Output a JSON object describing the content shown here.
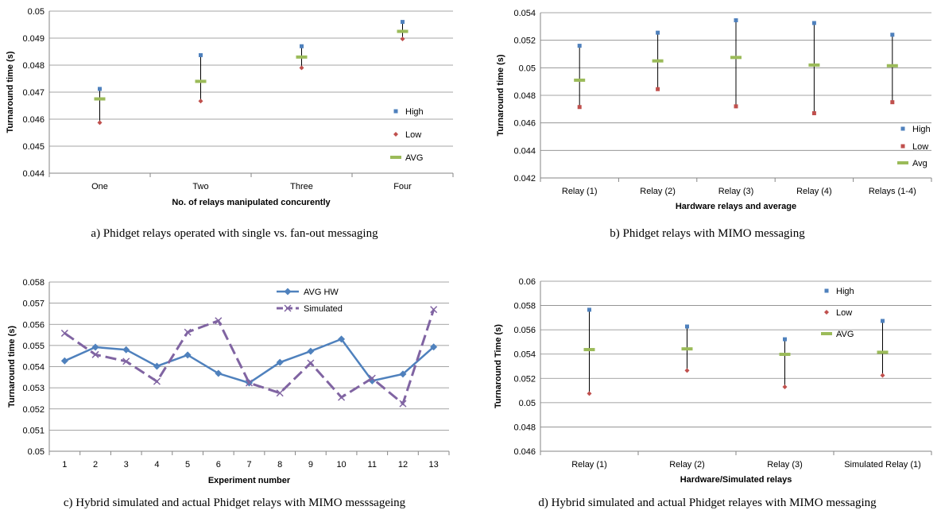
{
  "colors": {
    "high": "#4f81bd",
    "low": "#c0504d",
    "avg": "#9bbb59",
    "hw": "#4f81bd",
    "sim": "#8064a2",
    "grid": "#868686",
    "whisker": "#000000"
  },
  "captions": [
    "a) Phidget relays operated with single vs. fan-out messaging",
    "b) Phidget relays with MIMO messaging",
    "c) Hybrid simulated and actual Phidget relays with MIMO messsageing",
    "d) Hybrid simulated and actual Phidget relayes with MIMO messaging"
  ],
  "chart_data": [
    {
      "type": "scatter",
      "xlabel": "No. of relays manipulated concurently",
      "ylabel": "Turnaround time (s)",
      "categories": [
        "One",
        "Two",
        "Three",
        "Four"
      ],
      "ylim": [
        0.044,
        0.05
      ],
      "yticks": [
        "0.044",
        "0.045",
        "0.046",
        "0.047",
        "0.048",
        "0.049",
        "0.05"
      ],
      "grid": true,
      "legend_position": "right",
      "series": [
        {
          "name": "High",
          "values": [
            0.04712,
            0.04837,
            0.0487,
            0.0496
          ]
        },
        {
          "name": "Low",
          "values": [
            0.04587,
            0.04667,
            0.0479,
            0.04897
          ]
        },
        {
          "name": "AVG",
          "values": [
            0.04675,
            0.0474,
            0.0483,
            0.04925
          ]
        }
      ]
    },
    {
      "type": "scatter",
      "xlabel": "Hardware relays and average",
      "ylabel": "Turnaround time (s)",
      "categories": [
        "Relay (1)",
        "Relay (2)",
        "Relay (3)",
        "Relay (4)",
        "Relays (1-4)"
      ],
      "ylim": [
        0.042,
        0.054
      ],
      "yticks": [
        "0.042",
        "0.044",
        "0.046",
        "0.048",
        "0.05",
        "0.052",
        "0.054"
      ],
      "grid": true,
      "legend_position": "right",
      "series": [
        {
          "name": "High",
          "values": [
            0.0516,
            0.05255,
            0.05345,
            0.05325,
            0.0524
          ]
        },
        {
          "name": "Low",
          "values": [
            0.04715,
            0.04845,
            0.0472,
            0.0467,
            0.0475
          ]
        },
        {
          "name": "Avg",
          "values": [
            0.0491,
            0.0505,
            0.05075,
            0.0502,
            0.05015
          ]
        }
      ]
    },
    {
      "type": "line",
      "xlabel": "Experiment number",
      "ylabel": "Turnaround time (s)",
      "categories": [
        "1",
        "2",
        "3",
        "4",
        "5",
        "6",
        "7",
        "8",
        "9",
        "10",
        "11",
        "12",
        "13"
      ],
      "ylim": [
        0.05,
        0.058
      ],
      "yticks": [
        "0.05",
        "0.051",
        "0.052",
        "0.053",
        "0.054",
        "0.055",
        "0.056",
        "0.057",
        "0.058"
      ],
      "grid": true,
      "legend_position": "top-right",
      "series": [
        {
          "name": "AVG HW",
          "values": [
            0.05427,
            0.05492,
            0.0548,
            0.05402,
            0.05455,
            0.05368,
            0.05323,
            0.0542,
            0.05473,
            0.0553,
            0.05333,
            0.05365,
            0.05493
          ]
        },
        {
          "name": "Simulated",
          "values": [
            0.05558,
            0.05457,
            0.05425,
            0.0533,
            0.05563,
            0.05617,
            0.05323,
            0.05275,
            0.05417,
            0.05255,
            0.05345,
            0.05225,
            0.0567
          ]
        }
      ]
    },
    {
      "type": "scatter",
      "xlabel": "Hardware/Simulated relays",
      "ylabel": "Turnaround Time (s)",
      "categories": [
        "Relay (1)",
        "Relay (2)",
        "Relay (3)",
        "Simulated Relay (1)"
      ],
      "ylim": [
        0.046,
        0.06
      ],
      "yticks": [
        "0.046",
        "0.048",
        "0.05",
        "0.052",
        "0.054",
        "0.056",
        "0.058",
        "0.06"
      ],
      "grid": true,
      "legend_position": "top-right",
      "series": [
        {
          "name": "High",
          "values": [
            0.05765,
            0.05627,
            0.05522,
            0.05673
          ]
        },
        {
          "name": "Low",
          "values": [
            0.05075,
            0.05265,
            0.0513,
            0.05225
          ]
        },
        {
          "name": "AVG",
          "values": [
            0.05437,
            0.05443,
            0.05398,
            0.05415
          ]
        }
      ]
    }
  ]
}
